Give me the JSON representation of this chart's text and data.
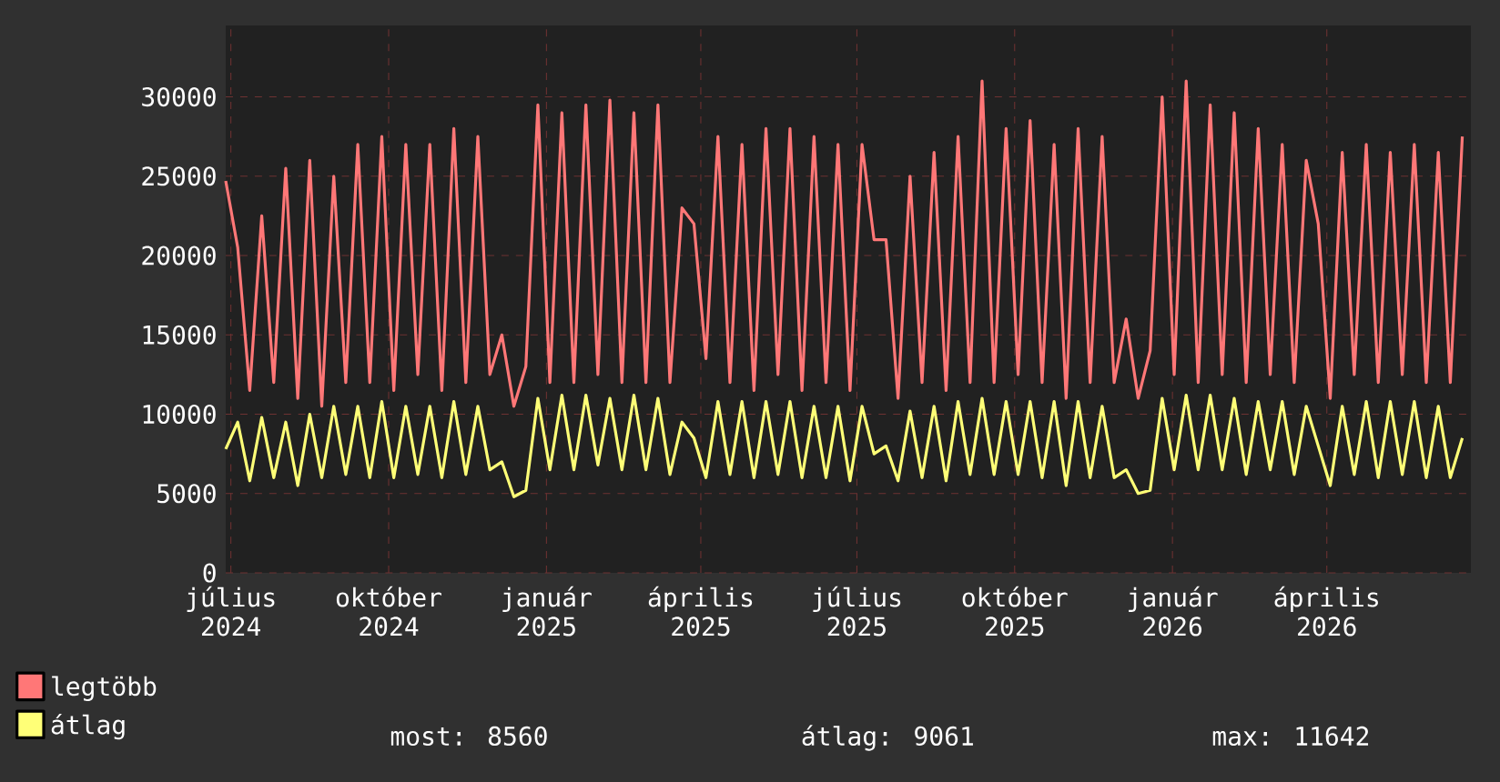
{
  "chart_data": {
    "type": "line",
    "legend": "bottom",
    "grid": true,
    "marker": "none",
    "line_style": "solid",
    "xlim": [
      "2024-07-12",
      "2026-07-08"
    ],
    "ylim": [
      0,
      34500
    ],
    "yticks": [
      0,
      5000,
      10000,
      15000,
      20000,
      25000,
      30000
    ],
    "xticks": [
      {
        "value": "2024-07-15",
        "label": "július 2024"
      },
      {
        "value": "2024-10-15",
        "label": "október 2024"
      },
      {
        "value": "2025-01-15",
        "label": "január 2025"
      },
      {
        "value": "2025-04-15",
        "label": "április 2025"
      },
      {
        "value": "2025-07-15",
        "label": "július 2025"
      },
      {
        "value": "2025-10-15",
        "label": "október 2025"
      },
      {
        "value": "2026-01-15",
        "label": "január 2026"
      },
      {
        "value": "2026-04-15",
        "label": "április 2026"
      }
    ],
    "x": [
      "2024-07-12",
      "2024-07-19",
      "2024-07-26",
      "2024-08-02",
      "2024-08-09",
      "2024-08-16",
      "2024-08-23",
      "2024-08-30",
      "2024-09-06",
      "2024-09-13",
      "2024-09-20",
      "2024-09-27",
      "2024-10-04",
      "2024-10-11",
      "2024-10-18",
      "2024-10-25",
      "2024-11-01",
      "2024-11-08",
      "2024-11-15",
      "2024-11-22",
      "2024-11-29",
      "2024-12-06",
      "2024-12-13",
      "2024-12-20",
      "2024-12-27",
      "2025-01-03",
      "2025-01-10",
      "2025-01-17",
      "2025-01-24",
      "2025-01-31",
      "2025-02-07",
      "2025-02-14",
      "2025-02-21",
      "2025-02-28",
      "2025-03-07",
      "2025-03-14",
      "2025-03-21",
      "2025-03-28",
      "2025-04-04",
      "2025-04-11",
      "2025-04-18",
      "2025-04-25",
      "2025-05-02",
      "2025-05-09",
      "2025-05-16",
      "2025-05-23",
      "2025-05-30",
      "2025-06-06",
      "2025-06-13",
      "2025-06-20",
      "2025-06-27",
      "2025-07-04",
      "2025-07-11",
      "2025-07-18",
      "2025-07-25",
      "2025-08-01",
      "2025-08-08",
      "2025-08-15",
      "2025-08-22",
      "2025-08-29",
      "2025-09-05",
      "2025-09-12",
      "2025-09-19",
      "2025-09-26",
      "2025-10-03",
      "2025-10-10",
      "2025-10-17",
      "2025-10-24",
      "2025-10-31",
      "2025-11-07",
      "2025-11-14",
      "2025-11-21",
      "2025-11-28",
      "2025-12-05",
      "2025-12-12",
      "2025-12-19",
      "2025-12-26",
      "2026-01-02",
      "2026-01-09",
      "2026-01-16",
      "2026-01-23",
      "2026-01-30",
      "2026-02-06",
      "2026-02-13",
      "2026-02-20",
      "2026-02-27",
      "2026-03-06",
      "2026-03-13",
      "2026-03-20",
      "2026-03-27",
      "2026-04-03",
      "2026-04-10",
      "2026-04-17",
      "2026-04-24",
      "2026-05-01",
      "2026-05-08",
      "2026-05-15",
      "2026-05-22",
      "2026-05-29",
      "2026-06-05",
      "2026-06-12",
      "2026-06-19",
      "2026-06-26",
      "2026-07-03"
    ],
    "series": [
      {
        "name": "legtöbb",
        "color": "#ff7777",
        "values": [
          24700,
          20500,
          11500,
          22500,
          12000,
          25500,
          11000,
          26000,
          10500,
          25000,
          12000,
          27000,
          12000,
          27500,
          11500,
          27000,
          12500,
          27000,
          11500,
          28000,
          12000,
          27500,
          12500,
          15000,
          10500,
          13000,
          29500,
          12000,
          29000,
          12000,
          29500,
          12500,
          29800,
          12000,
          29000,
          12000,
          29500,
          12000,
          23000,
          22000,
          13500,
          27500,
          12000,
          27000,
          11500,
          28000,
          12500,
          28000,
          11500,
          27500,
          12000,
          27000,
          11500,
          27000,
          21000,
          21000,
          11000,
          25000,
          12000,
          26500,
          11500,
          27500,
          12000,
          31000,
          12000,
          28000,
          12500,
          28500,
          12000,
          27000,
          11000,
          28000,
          12000,
          27500,
          12000,
          16000,
          11000,
          14000,
          30000,
          12500,
          31000,
          12000,
          29500,
          12500,
          29000,
          12000,
          28000,
          12500,
          27000,
          12000,
          26000,
          22000,
          11000,
          26500,
          12500,
          27000,
          12000,
          26500,
          12500,
          27000,
          12000,
          26500,
          12000,
          27500
        ]
      },
      {
        "name": "átlag",
        "color": "#ffff77",
        "values": [
          7800,
          9500,
          5800,
          9800,
          6000,
          9500,
          5500,
          10000,
          6000,
          10500,
          6200,
          10500,
          6000,
          10800,
          6000,
          10500,
          6200,
          10500,
          6000,
          10800,
          6200,
          10500,
          6500,
          7000,
          4800,
          5200,
          11000,
          6500,
          11200,
          6500,
          11200,
          6800,
          11000,
          6500,
          11200,
          6500,
          11000,
          6200,
          9500,
          8500,
          6000,
          10800,
          6200,
          10800,
          6000,
          10800,
          6200,
          10800,
          6000,
          10500,
          6000,
          10500,
          5800,
          10500,
          7500,
          8000,
          5800,
          10200,
          6000,
          10500,
          5800,
          10800,
          6200,
          11000,
          6200,
          10800,
          6200,
          10800,
          6000,
          10800,
          5500,
          10800,
          6000,
          10500,
          6000,
          6500,
          5000,
          5200,
          11000,
          6500,
          11200,
          6500,
          11200,
          6500,
          11000,
          6200,
          10800,
          6500,
          10800,
          6200,
          10500,
          8000,
          5500,
          10500,
          6200,
          10800,
          6000,
          10800,
          6200,
          10800,
          6000,
          10500,
          6000,
          8500
        ]
      }
    ],
    "annotations": [
      "most: 8560",
      "átlag: 9061",
      "max: 11642"
    ]
  }
}
